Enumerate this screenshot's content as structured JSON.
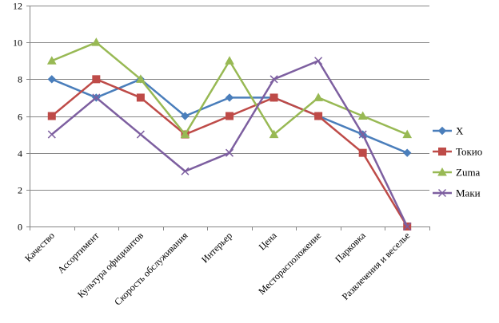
{
  "chart_data": {
    "type": "line",
    "title": "",
    "xlabel": "",
    "ylabel": "",
    "categories": [
      "Качество",
      "Ассортимент",
      "Культура официантов",
      "Скорость обслуживания",
      "Интерьер",
      "Цена",
      "Месторасположение",
      "Парковка",
      "Развлечения и веселье"
    ],
    "ylim": [
      0,
      12
    ],
    "yticks": [
      "0",
      "2",
      "4",
      "6",
      "8",
      "10",
      "12"
    ],
    "grid": "horizontal",
    "legend_position": "right",
    "series": [
      {
        "name": "X",
        "color": "#4A7EBB",
        "marker": "diamond",
        "values": [
          8,
          7,
          8,
          6,
          7,
          7,
          6,
          5,
          4
        ]
      },
      {
        "name": "Токио",
        "color": "#BE4B48",
        "marker": "square",
        "values": [
          6,
          8,
          7,
          5,
          6,
          7,
          6,
          4,
          0
        ]
      },
      {
        "name": "Zuma",
        "color": "#98B954",
        "marker": "triangle",
        "values": [
          9,
          10,
          8,
          5,
          9,
          5,
          7,
          6,
          5
        ]
      },
      {
        "name": "Маки",
        "color": "#7D5FA0",
        "marker": "x",
        "values": [
          5,
          7,
          5,
          3,
          4,
          8,
          9,
          5,
          0
        ]
      }
    ]
  }
}
